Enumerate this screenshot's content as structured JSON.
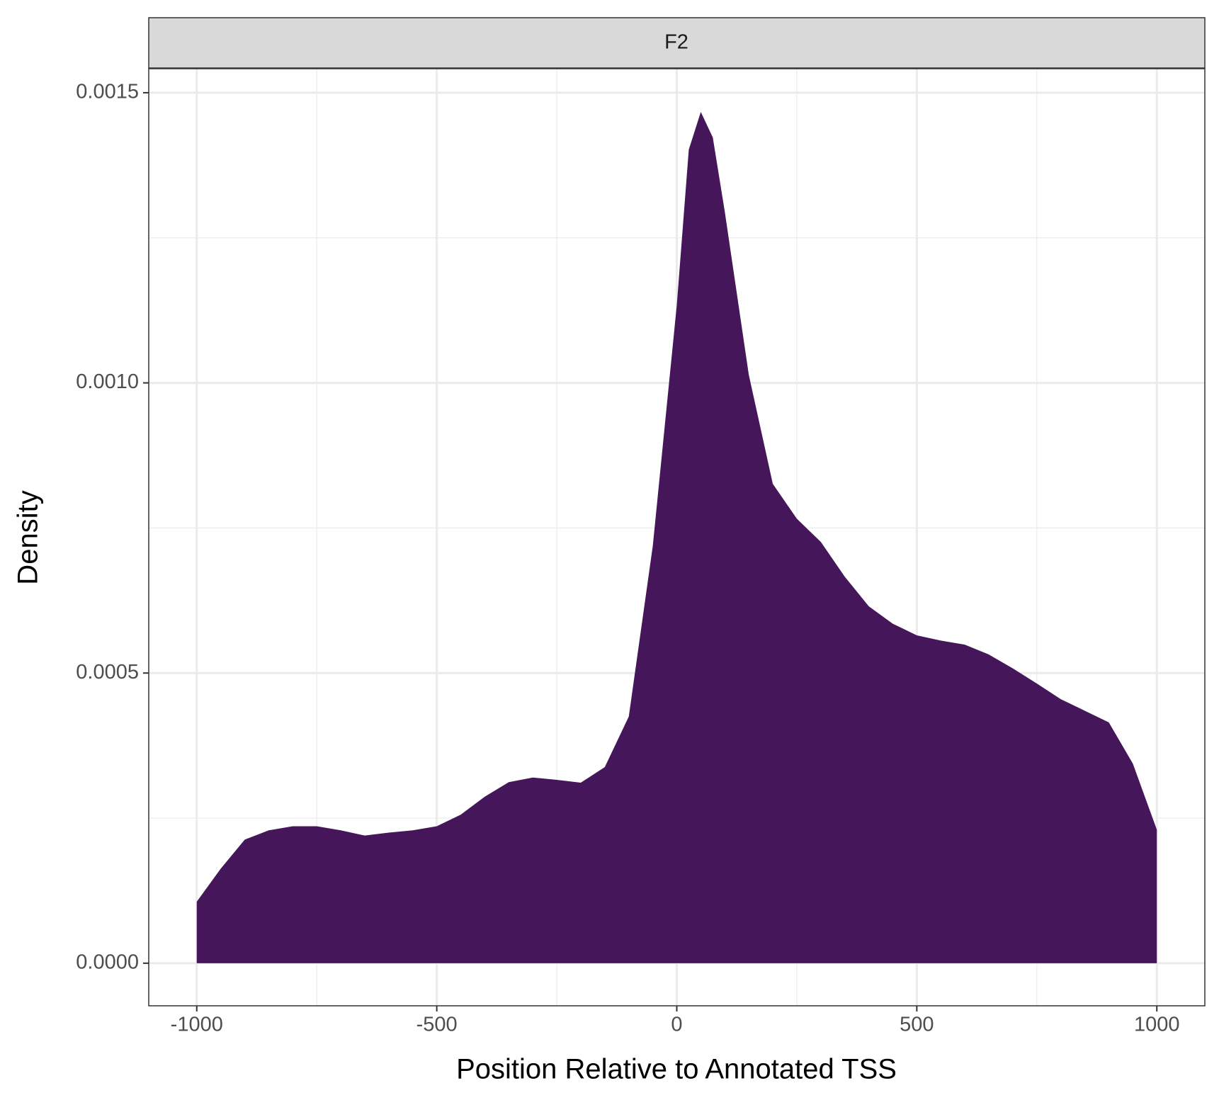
{
  "chart_data": {
    "type": "area",
    "facet": "F2",
    "xlabel": "Position Relative to Annotated TSS",
    "ylabel": "Density",
    "x": [
      -1000,
      -950,
      -900,
      -850,
      -800,
      -750,
      -700,
      -650,
      -600,
      -550,
      -500,
      -450,
      -400,
      -350,
      -300,
      -250,
      -200,
      -150,
      -100,
      -50,
      0,
      25,
      50,
      75,
      100,
      150,
      200,
      250,
      300,
      350,
      400,
      450,
      500,
      550,
      600,
      650,
      700,
      750,
      800,
      850,
      900,
      950,
      1000
    ],
    "values": [
      0.000106,
      0.000163,
      0.000213,
      0.000229,
      0.000236,
      0.000236,
      0.000229,
      0.00022,
      0.000225,
      0.000229,
      0.000236,
      0.000256,
      0.000287,
      0.000312,
      0.00032,
      0.000316,
      0.000311,
      0.000338,
      0.000425,
      0.000719,
      0.001134,
      0.001402,
      0.001467,
      0.001423,
      0.001295,
      0.001014,
      0.000826,
      0.000766,
      0.000726,
      0.000666,
      0.000615,
      0.000585,
      0.000565,
      0.000556,
      0.000549,
      0.000532,
      0.000508,
      0.000482,
      0.000455,
      0.000435,
      0.000415,
      0.000344,
      0.00023
    ],
    "color": "#45175a",
    "xlim": [
      -1100,
      1100
    ],
    "ylim": [
      -7.34e-05,
      0.0015414
    ],
    "xticks": [
      -1000,
      -500,
      0,
      500,
      1000
    ],
    "yticks": [
      {
        "value": 0,
        "label": "0.0000"
      },
      {
        "value": 0.0005,
        "label": "0.0005"
      },
      {
        "value": 0.001,
        "label": "0.0010"
      },
      {
        "value": 0.0015,
        "label": "0.0015"
      }
    ],
    "xminor": [
      -750,
      -250,
      250,
      750
    ],
    "yminor": [
      0.00025,
      0.00075,
      0.00125
    ],
    "grid": true
  }
}
